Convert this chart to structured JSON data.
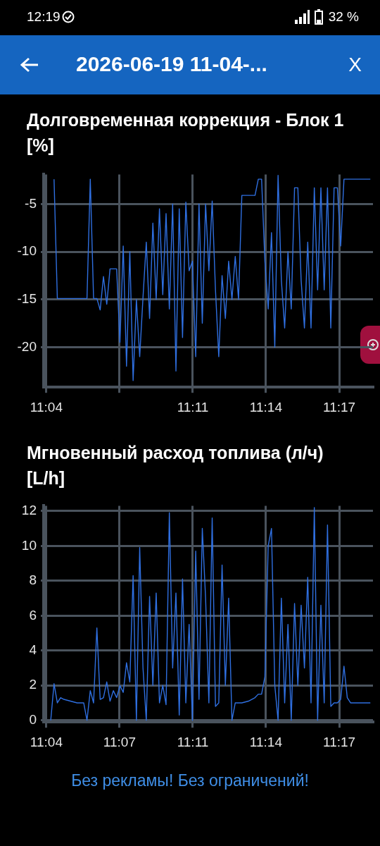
{
  "chart_data": [
    {
      "type": "line",
      "title": "Долговременная коррекция - Блок 1 [%]",
      "annotations": [
        "12:19",
        "32 %",
        "2026-06-19 11-04-...",
        "X"
      ],
      "x": [
        11.0725,
        11.075,
        11.0775,
        11.08,
        11.0825,
        11.085,
        11.0875,
        11.09,
        11.0925,
        11.095,
        11.0975,
        11.1,
        11.1025,
        11.105,
        11.1075,
        11.11,
        11.1125,
        11.115,
        11.1175,
        11.12,
        11.1225,
        11.125,
        11.1275,
        11.13,
        11.1325,
        11.135,
        11.1375,
        11.14,
        11.1425,
        11.145,
        11.1475,
        11.15,
        11.1525,
        11.155,
        11.1575,
        11.16,
        11.1625,
        11.165,
        11.1675,
        11.17,
        11.1725,
        11.175,
        11.1775,
        11.18,
        11.1825,
        11.185,
        11.1875,
        11.19,
        11.1925,
        11.195,
        11.1975,
        11.2,
        11.2025,
        11.205,
        11.2075,
        11.21,
        11.2125,
        11.215,
        11.2175,
        11.22,
        11.2225,
        11.225,
        11.2275,
        11.23,
        11.2325,
        11.235,
        11.2375,
        11.24,
        11.2425,
        11.245,
        11.2475,
        11.25,
        11.2525,
        11.255,
        11.2575,
        11.26,
        11.2625,
        11.265,
        11.2675,
        11.27,
        11.2725,
        11.275,
        11.2775,
        11.28,
        11.2825,
        11.285,
        11.2875,
        11.29,
        11.2925,
        11.295,
        11.2975,
        11.3,
        11.3025,
        11.305,
        11.3075,
        11.31,
        11.3125
      ],
      "series": [
        {
          "color": "#2f6fe0",
          "values": [
            -2.4,
            -14.9,
            -14.9,
            -14.9,
            -14.9,
            -14.9,
            -14.9,
            -14.9,
            -14.9,
            -14.9,
            -14.9,
            -2.4,
            -14.9,
            -14.9,
            -16.1,
            -12.6,
            -15.5,
            -11.8,
            -11.8,
            -11.8,
            -19.5,
            -9.4,
            -22,
            -10,
            -23.5,
            -15,
            -21,
            -14.8,
            -9,
            -17,
            -7,
            -15,
            -5.5,
            -14.5,
            -6,
            -16,
            -5,
            -22.5,
            -5.5,
            -19,
            -4.8,
            -12,
            -11,
            -21,
            -5,
            -17.5,
            -5,
            -12,
            -4.7,
            -14,
            -21,
            -12.5,
            -17,
            -11,
            -15,
            -10.5,
            -15,
            -4.1,
            -4.1,
            -4.1,
            -4.1,
            -4.1,
            -2.4,
            -2.4,
            -11,
            -16,
            -8,
            -20,
            -2,
            -13,
            -18,
            -10,
            -16,
            -3.3,
            -3.3,
            -13,
            -18,
            -9,
            -18,
            -3.3,
            -14,
            -3.3,
            -14,
            -3.3,
            -18,
            -3.3,
            -3.3,
            -9.4,
            -2.4,
            -2.4,
            -2.4,
            -2.4,
            -2.4,
            -2.4,
            -2.4,
            -2.4,
            -2.4
          ]
        }
      ],
      "xlim": [
        11.0646,
        11.3145
      ],
      "xticks": [
        {
          "value": 11.0667,
          "label": "11:04"
        },
        {
          "value": 11.1222,
          "label": null
        },
        {
          "value": 11.1778,
          "label": "11:11"
        },
        {
          "value": 11.2333,
          "label": "11:14"
        },
        {
          "value": 11.2889,
          "label": "11:17"
        }
      ],
      "ylim": [
        -24.2,
        -1.9
      ],
      "yticks": [
        -20,
        -15,
        -10,
        -5
      ],
      "grid": true,
      "marker": "none",
      "line_style": "solid"
    },
    {
      "type": "line",
      "title": "Мгновенный расход топлива (л/ч) [L/h]",
      "annotations": [
        "Без рекламы! Без ограничений!"
      ],
      "x": [
        11.07,
        11.0725,
        11.075,
        11.0775,
        11.08,
        11.0825,
        11.085,
        11.0875,
        11.09,
        11.0925,
        11.095,
        11.0975,
        11.1,
        11.1025,
        11.105,
        11.1075,
        11.11,
        11.1125,
        11.115,
        11.1175,
        11.12,
        11.1225,
        11.125,
        11.1275,
        11.13,
        11.1325,
        11.135,
        11.1375,
        11.14,
        11.1425,
        11.145,
        11.1475,
        11.15,
        11.1525,
        11.155,
        11.1575,
        11.16,
        11.1625,
        11.165,
        11.1675,
        11.17,
        11.1725,
        11.175,
        11.1775,
        11.18,
        11.1825,
        11.185,
        11.1875,
        11.19,
        11.1925,
        11.195,
        11.1975,
        11.2,
        11.2025,
        11.205,
        11.2075,
        11.21,
        11.2125,
        11.215,
        11.2175,
        11.22,
        11.2225,
        11.225,
        11.2275,
        11.23,
        11.2325,
        11.235,
        11.2375,
        11.24,
        11.2425,
        11.245,
        11.2475,
        11.25,
        11.2525,
        11.255,
        11.2575,
        11.26,
        11.2625,
        11.265,
        11.2675,
        11.27,
        11.2725,
        11.275,
        11.2775,
        11.28,
        11.2825,
        11.285,
        11.2875,
        11.29,
        11.2925,
        11.295,
        11.2975,
        11.3,
        11.3025,
        11.305,
        11.3075,
        11.31,
        11.3125
      ],
      "series": [
        {
          "color": "#2f6fe0",
          "values": [
            0,
            2.1,
            1.0,
            1.3,
            1.2,
            1.15,
            1.1,
            1.05,
            1.0,
            1.0,
            1.0,
            0,
            1.7,
            1.0,
            5.3,
            1.2,
            1.3,
            2.2,
            1.1,
            1.7,
            1.3,
            2.0,
            1.6,
            3.3,
            2.2,
            8.3,
            0,
            9.9,
            3,
            0,
            7.1,
            2,
            7.3,
            1.0,
            2.0,
            0.9,
            11.9,
            3,
            7.3,
            0.3,
            8.1,
            1.0,
            5.5,
            0,
            9.7,
            1.2,
            11.0,
            7,
            1.0,
            11.6,
            0.8,
            1.0,
            8.9,
            2,
            7.0,
            0,
            1.0,
            1.0,
            1.0,
            1.05,
            1.1,
            1.2,
            1.3,
            1.5,
            1.5,
            2.5,
            10,
            11.0,
            2,
            0,
            7.0,
            1,
            5.5,
            0,
            6.7,
            2,
            6.6,
            3,
            8.2,
            1,
            12.2,
            0,
            6.6,
            1,
            11.2,
            0.8,
            1.0,
            1.0,
            1.2,
            3.1,
            1.3,
            1.0,
            1.0,
            1.0,
            1.0,
            1.0,
            1.0,
            1.0
          ]
        }
      ],
      "xlim": [
        11.0646,
        11.3145
      ],
      "xticks": [
        {
          "value": 11.0667,
          "label": "11:04"
        },
        {
          "value": 11.1222,
          "label": "11:07"
        },
        {
          "value": 11.1778,
          "label": "11:11"
        },
        {
          "value": 11.2333,
          "label": "11:14"
        },
        {
          "value": 11.2889,
          "label": "11:17"
        }
      ],
      "ylim": [
        -0.1,
        12.3
      ],
      "yticks": [
        0,
        2,
        4,
        6,
        8,
        10,
        12
      ],
      "grid": true,
      "marker": "none",
      "line_style": "solid"
    }
  ]
}
